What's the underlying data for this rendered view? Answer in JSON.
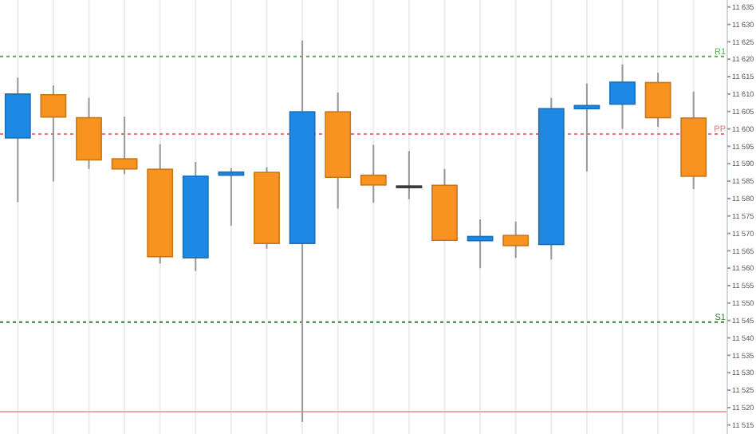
{
  "chart_data": {
    "type": "candlestick",
    "categories": [
      null,
      null,
      null,
      null,
      null,
      null,
      null,
      null,
      null,
      null,
      null,
      null,
      null,
      null,
      null,
      null,
      null,
      null,
      null,
      null
    ],
    "ohlc": [
      [
        11597.4,
        11614.7,
        11579.0,
        11610.0
      ],
      [
        11609.8,
        11612.5,
        11584.9,
        11603.4
      ],
      [
        11603.2,
        11608.9,
        11588.5,
        11591.1
      ],
      [
        11591.4,
        11603.5,
        11587.0,
        11588.5
      ],
      [
        11588.4,
        11595.6,
        11561.3,
        11563.3
      ],
      [
        11563.0,
        11590.5,
        11559.2,
        11586.4
      ],
      [
        11586.7,
        11588.7,
        11572.2,
        11587.6
      ],
      [
        11587.5,
        11589.0,
        11565.6,
        11567.1
      ],
      [
        11567.1,
        11625.4,
        11515.9,
        11604.9
      ],
      [
        11604.9,
        11610.4,
        11577.1,
        11586.1
      ],
      [
        11586.7,
        11595.4,
        11578.8,
        11583.9
      ],
      [
        11583.6,
        11593.6,
        11579.8,
        11583.6
      ],
      [
        11583.8,
        11588.5,
        11567.9,
        11568.0
      ],
      [
        11567.9,
        11574.0,
        11560.0,
        11569.1
      ],
      [
        11569.4,
        11573.4,
        11563.0,
        11566.5
      ],
      [
        11566.8,
        11608.9,
        11562.5,
        11605.8
      ],
      [
        11605.8,
        11613.0,
        11587.8,
        11606.7
      ],
      [
        11607.1,
        11618.5,
        11600.0,
        11613.4
      ],
      [
        11613.3,
        11616.1,
        11600.6,
        11603.2
      ],
      [
        11603.1,
        11610.7,
        11582.7,
        11586.4
      ]
    ],
    "colors": [
      "#1e88e5",
      "#f7931e",
      "#f7931e",
      "#f7931e",
      "#f7931e",
      "#1e88e5",
      "#1e88e5",
      "#f7931e",
      "#1e88e5",
      "#f7931e",
      "#f7931e",
      "#444444",
      "#f7931e",
      "#1e88e5",
      "#f7931e",
      "#1e88e5",
      "#1e88e5",
      "#1e88e5",
      "#f7931e",
      "#f7931e"
    ],
    "ylim": [
      11512.4,
      11637
    ],
    "yticks": [
      {
        "value": 11515,
        "label": "11 515"
      },
      {
        "value": 11520,
        "label": "11 520"
      },
      {
        "value": 11525,
        "label": "11 525"
      },
      {
        "value": 11530,
        "label": "11 530"
      },
      {
        "value": 11535,
        "label": "11 535"
      },
      {
        "value": 11540,
        "label": "11 540"
      },
      {
        "value": 11545,
        "label": "11 545"
      },
      {
        "value": 11550,
        "label": "11 550"
      },
      {
        "value": 11555,
        "label": "11 555"
      },
      {
        "value": 11560,
        "label": "11 560"
      },
      {
        "value": 11565,
        "label": "11 565"
      },
      {
        "value": 11570,
        "label": "11 570"
      },
      {
        "value": 11575,
        "label": "11 575"
      },
      {
        "value": 11580,
        "label": "11 580"
      },
      {
        "value": 11585,
        "label": "11 585"
      },
      {
        "value": 11590,
        "label": "11 590"
      },
      {
        "value": 11595,
        "label": "11 595"
      },
      {
        "value": 11600,
        "label": "11 600"
      },
      {
        "value": 11605,
        "label": "11 605"
      },
      {
        "value": 11610,
        "label": "11 610"
      },
      {
        "value": 11615,
        "label": "11 615"
      },
      {
        "value": 11620,
        "label": "11 620"
      },
      {
        "value": 11625,
        "label": "11 625"
      },
      {
        "value": 11630,
        "label": "11 630"
      },
      {
        "value": 11635,
        "label": "11 635"
      }
    ],
    "grid": "x",
    "ref_lines": [
      {
        "axis": "y",
        "value": 11620.8,
        "label": "R1",
        "color": "#4caf50",
        "line_style": "dotted"
      },
      {
        "axis": "y",
        "value": 11598.5,
        "label": "PP",
        "color": "#e57373",
        "line_style": "dotted"
      },
      {
        "axis": "y",
        "value": 11544.5,
        "label": "S1",
        "color": "#2e7d32",
        "line_style": "dotted"
      },
      {
        "axis": "y",
        "value": 11518.8,
        "color": "#f4a6a6",
        "line_style": "solid"
      }
    ]
  }
}
